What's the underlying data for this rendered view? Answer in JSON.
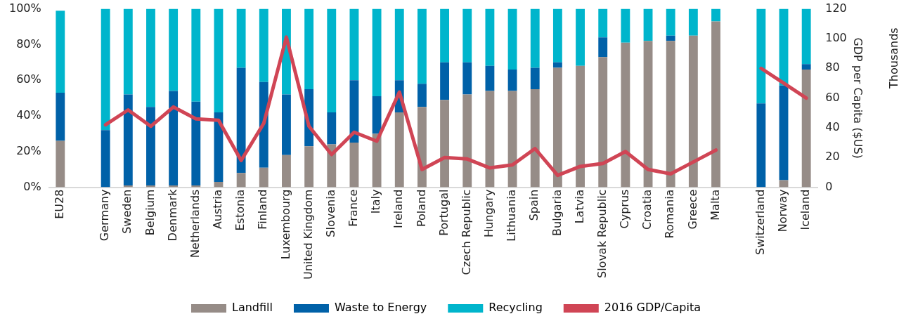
{
  "chart_data": {
    "type": "bar",
    "stacked": true,
    "categories": [
      "EU28",
      null,
      "Germany",
      "Sweden",
      "Belgium",
      "Denmark",
      "Netherlands",
      "Austria",
      "Estonia",
      "Finland",
      "Luxembourg",
      "United Kingdom",
      "Slovenia",
      "France",
      "Italy",
      "Ireland",
      "Poland",
      "Portugal",
      "Czech Republic",
      "Hungary",
      "Lithuania",
      "Spain",
      "Bulgaria",
      "Latvia",
      "Slovak Republic",
      "Cyprus",
      "Croatia",
      "Romania",
      "Greece",
      "Malta",
      null,
      "Switzerland",
      "Norway",
      "Iceland"
    ],
    "series": [
      {
        "name": "Landfill",
        "color": "#968c87",
        "values": [
          26,
          null,
          0,
          1,
          1,
          1,
          1,
          3,
          8,
          11,
          18,
          23,
          24,
          25,
          30,
          42,
          45,
          49,
          52,
          54,
          54,
          55,
          67,
          68,
          73,
          81,
          82,
          82,
          85,
          93,
          null,
          0,
          4,
          66
        ]
      },
      {
        "name": "Waste to Energy",
        "color": "#0061a8",
        "values": [
          27,
          null,
          32,
          51,
          44,
          53,
          47,
          39,
          59,
          48,
          34,
          32,
          18,
          35,
          21,
          18,
          13,
          21,
          18,
          14,
          12,
          12,
          3,
          0,
          11,
          0,
          0,
          3,
          0,
          0,
          null,
          47,
          53,
          3
        ]
      },
      {
        "name": "Recycling",
        "color": "#00b5cc",
        "values": [
          46,
          null,
          68,
          48,
          55,
          46,
          52,
          58,
          33,
          41,
          48,
          45,
          58,
          40,
          49,
          40,
          42,
          30,
          30,
          32,
          34,
          33,
          30,
          32,
          16,
          19,
          18,
          15,
          15,
          7,
          null,
          53,
          43,
          31
        ]
      },
      {
        "name": "2016 GDP/Capita",
        "type": "line",
        "axis": "y2",
        "color": "#d04555",
        "values": [
          null,
          null,
          42,
          52,
          41,
          54,
          46,
          45,
          18,
          43,
          101,
          41,
          22,
          37,
          31,
          64,
          12,
          20,
          19,
          13,
          15,
          26,
          8,
          14,
          16,
          24,
          12,
          9,
          17,
          25,
          null,
          80,
          70,
          60
        ]
      }
    ],
    "ylim": [
      0,
      100
    ],
    "yticks": [
      {
        "value": 0,
        "label": "0%"
      },
      {
        "value": 20,
        "label": "20%"
      },
      {
        "value": 40,
        "label": "40%"
      },
      {
        "value": 60,
        "label": "60%"
      },
      {
        "value": 80,
        "label": "80%"
      },
      {
        "value": 100,
        "label": "100%"
      }
    ],
    "y2lim": [
      0,
      120
    ],
    "y2ticks": [
      0,
      20,
      40,
      60,
      80,
      100,
      120
    ],
    "y2label": "GDP per Capita ($US)",
    "annotations": [
      "Thousands"
    ],
    "legend": "bottom",
    "grid": false,
    "marker": "none",
    "line_style": "solid"
  }
}
